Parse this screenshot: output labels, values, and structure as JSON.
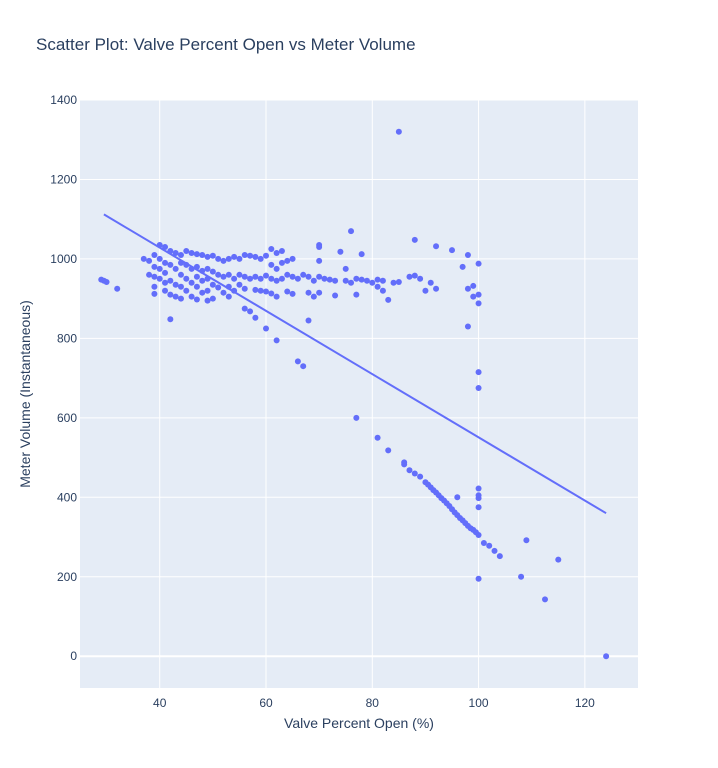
{
  "chart_data": {
    "type": "scatter",
    "title": "Scatter Plot: Valve Percent Open vs Meter Volume",
    "xlabel": "Valve Percent Open (%)",
    "ylabel": "Meter Volume (Instantaneous)",
    "xlim": [
      25,
      130
    ],
    "ylim": [
      -80,
      1400
    ],
    "x_ticks": [
      40,
      60,
      80,
      100,
      120
    ],
    "y_ticks": [
      0,
      200,
      400,
      600,
      800,
      1000,
      1200,
      1400
    ],
    "grid": true,
    "legend": "none",
    "colors": {
      "marker": "#636efa",
      "plot_background": "#e5ecf6",
      "grid": "#ffffff",
      "text": "#2a3f5f"
    },
    "series": [
      {
        "type": "scatter",
        "points": [
          [
            29,
            948
          ],
          [
            29.5,
            945
          ],
          [
            30,
            942
          ],
          [
            32,
            925
          ],
          [
            37,
            1000
          ],
          [
            38,
            995
          ],
          [
            38,
            960
          ],
          [
            39,
            1010
          ],
          [
            39,
            980
          ],
          [
            39,
            955
          ],
          [
            39,
            930
          ],
          [
            39,
            912
          ],
          [
            40,
            1035
          ],
          [
            40,
            1000
          ],
          [
            40,
            975
          ],
          [
            40,
            950
          ],
          [
            41,
            1030
          ],
          [
            41,
            990
          ],
          [
            41,
            965
          ],
          [
            41,
            940
          ],
          [
            41,
            920
          ],
          [
            42,
            1020
          ],
          [
            42,
            985
          ],
          [
            42,
            945
          ],
          [
            42,
            910
          ],
          [
            42,
            848
          ],
          [
            43,
            1015
          ],
          [
            43,
            975
          ],
          [
            43,
            935
          ],
          [
            43,
            905
          ],
          [
            44,
            1010
          ],
          [
            44,
            990
          ],
          [
            44,
            960
          ],
          [
            44,
            930
          ],
          [
            44,
            900
          ],
          [
            45,
            1020
          ],
          [
            45,
            985
          ],
          [
            45,
            950
          ],
          [
            45,
            920
          ],
          [
            46,
            1015
          ],
          [
            46,
            975
          ],
          [
            46,
            940
          ],
          [
            46,
            905
          ],
          [
            47,
            1012
          ],
          [
            47,
            980
          ],
          [
            47,
            955
          ],
          [
            47,
            930
          ],
          [
            47,
            898
          ],
          [
            48,
            1010
          ],
          [
            48,
            970
          ],
          [
            48,
            945
          ],
          [
            48,
            915
          ],
          [
            49,
            1005
          ],
          [
            49,
            975
          ],
          [
            49,
            950
          ],
          [
            49,
            920
          ],
          [
            49,
            895
          ],
          [
            50,
            1008
          ],
          [
            50,
            968
          ],
          [
            50,
            935
          ],
          [
            50,
            900
          ],
          [
            51,
            1000
          ],
          [
            51,
            960
          ],
          [
            51,
            928
          ],
          [
            52,
            995
          ],
          [
            52,
            955
          ],
          [
            52,
            915
          ],
          [
            53,
            1000
          ],
          [
            53,
            960
          ],
          [
            53,
            930
          ],
          [
            53,
            905
          ],
          [
            54,
            1005
          ],
          [
            54,
            950
          ],
          [
            54,
            920
          ],
          [
            55,
            1000
          ],
          [
            55,
            960
          ],
          [
            55,
            935
          ],
          [
            56,
            1010
          ],
          [
            56,
            955
          ],
          [
            56,
            925
          ],
          [
            56,
            875
          ],
          [
            57,
            1008
          ],
          [
            57,
            950
          ],
          [
            57,
            868
          ],
          [
            58,
            1005
          ],
          [
            58,
            955
          ],
          [
            58,
            922
          ],
          [
            58,
            852
          ],
          [
            59,
            1000
          ],
          [
            59,
            950
          ],
          [
            59,
            920
          ],
          [
            60,
            1008
          ],
          [
            60,
            958
          ],
          [
            60,
            918
          ],
          [
            60,
            825
          ],
          [
            61,
            1025
          ],
          [
            61,
            985
          ],
          [
            61,
            950
          ],
          [
            61,
            913
          ],
          [
            62,
            1015
          ],
          [
            62,
            975
          ],
          [
            62,
            945
          ],
          [
            62,
            905
          ],
          [
            62,
            795
          ],
          [
            63,
            1020
          ],
          [
            63,
            990
          ],
          [
            63,
            950
          ],
          [
            64,
            995
          ],
          [
            64,
            960
          ],
          [
            64,
            918
          ],
          [
            65,
            1000
          ],
          [
            65,
            955
          ],
          [
            65,
            912
          ],
          [
            66,
            950
          ],
          [
            66,
            742
          ],
          [
            67,
            960
          ],
          [
            67,
            730
          ],
          [
            68,
            955
          ],
          [
            68,
            915
          ],
          [
            68,
            845
          ],
          [
            69,
            945
          ],
          [
            69,
            905
          ],
          [
            70,
            1035
          ],
          [
            70,
            1030
          ],
          [
            70,
            995
          ],
          [
            70,
            955
          ],
          [
            70,
            915
          ],
          [
            71,
            950
          ],
          [
            72,
            948
          ],
          [
            73,
            945
          ],
          [
            73,
            908
          ],
          [
            74,
            1018
          ],
          [
            75,
            945
          ],
          [
            75,
            975
          ],
          [
            76,
            1070
          ],
          [
            76,
            940
          ],
          [
            77,
            950
          ],
          [
            77,
            910
          ],
          [
            77,
            600
          ],
          [
            78,
            1012
          ],
          [
            78,
            948
          ],
          [
            79,
            945
          ],
          [
            80,
            940
          ],
          [
            81,
            948
          ],
          [
            81,
            930
          ],
          [
            81,
            550
          ],
          [
            82,
            945
          ],
          [
            82,
            920
          ],
          [
            83,
            897
          ],
          [
            83,
            518
          ],
          [
            84,
            940
          ],
          [
            85,
            1320
          ],
          [
            85,
            942
          ],
          [
            86,
            488
          ],
          [
            86,
            483
          ],
          [
            87,
            955
          ],
          [
            87,
            468
          ],
          [
            88,
            1048
          ],
          [
            88,
            958
          ],
          [
            88,
            460
          ],
          [
            89,
            950
          ],
          [
            89,
            452
          ],
          [
            90,
            920
          ],
          [
            90,
            438
          ],
          [
            90.5,
            432
          ],
          [
            91,
            940
          ],
          [
            91,
            425
          ],
          [
            91.5,
            418
          ],
          [
            92,
            1032
          ],
          [
            92,
            925
          ],
          [
            92,
            412
          ],
          [
            92.5,
            405
          ],
          [
            93,
            398
          ],
          [
            93.5,
            392
          ],
          [
            94,
            385
          ],
          [
            94.5,
            378
          ],
          [
            95,
            1022
          ],
          [
            95,
            370
          ],
          [
            95.5,
            362
          ],
          [
            96,
            400
          ],
          [
            96,
            355
          ],
          [
            96.5,
            348
          ],
          [
            97,
            980
          ],
          [
            97,
            342
          ],
          [
            97.5,
            335
          ],
          [
            98,
            1010
          ],
          [
            98,
            328
          ],
          [
            98,
            830
          ],
          [
            98,
            925
          ],
          [
            98.5,
            322
          ],
          [
            99,
            932
          ],
          [
            99,
            905
          ],
          [
            99,
            318
          ],
          [
            99.5,
            312
          ],
          [
            100,
            988
          ],
          [
            100,
            910
          ],
          [
            100,
            888
          ],
          [
            100,
            715
          ],
          [
            100,
            675
          ],
          [
            100,
            422
          ],
          [
            100,
            405
          ],
          [
            100,
            398
          ],
          [
            100,
            375
          ],
          [
            100,
            305
          ],
          [
            100,
            195
          ],
          [
            101,
            285
          ],
          [
            102,
            278
          ],
          [
            103,
            265
          ],
          [
            104,
            252
          ],
          [
            108,
            200
          ],
          [
            109,
            292
          ],
          [
            112.5,
            143
          ],
          [
            115,
            243
          ],
          [
            124,
            0
          ]
        ]
      },
      {
        "type": "line",
        "points": [
          [
            29.5,
            1112
          ],
          [
            124,
            360
          ]
        ]
      }
    ]
  }
}
